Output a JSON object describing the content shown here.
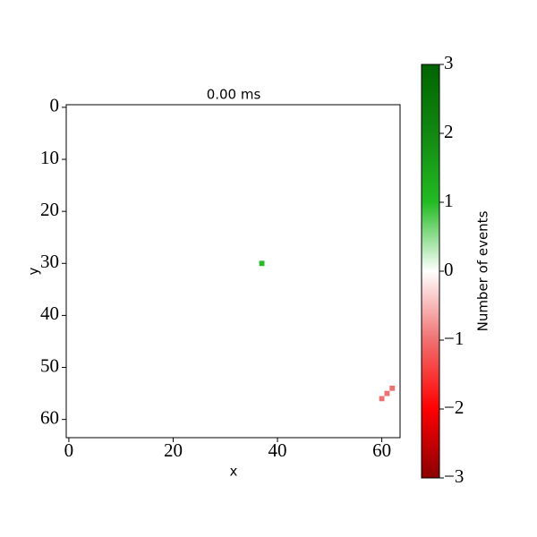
{
  "chart_data": {
    "type": "heatmap",
    "title": "0.00 ms",
    "x_label": "x",
    "y_label": "y",
    "xlim": [
      -0.5,
      63.5
    ],
    "ylim": [
      63.5,
      -0.5
    ],
    "xticks": [
      0,
      20,
      40,
      60
    ],
    "yticks": [
      0,
      10,
      20,
      30,
      40,
      50,
      60
    ],
    "points": [
      {
        "x": 37,
        "y": 30,
        "value": 1
      },
      {
        "x": 60,
        "y": 56,
        "value": -1
      },
      {
        "x": 61,
        "y": 55,
        "value": -1
      },
      {
        "x": 62,
        "y": 54,
        "value": -1
      }
    ],
    "colorbar": {
      "label": "Number of events",
      "lim": [
        -3,
        3
      ],
      "ticks": [
        {
          "value": -3,
          "label": "−3"
        },
        {
          "value": -2,
          "label": "−2"
        },
        {
          "value": -1,
          "label": "−1"
        },
        0,
        1,
        2,
        3
      ],
      "colors": [
        "#8b0000",
        "#ff0000",
        "#f07070",
        "#ffffff",
        "#22bb22",
        "#118811",
        "#006400"
      ]
    }
  }
}
